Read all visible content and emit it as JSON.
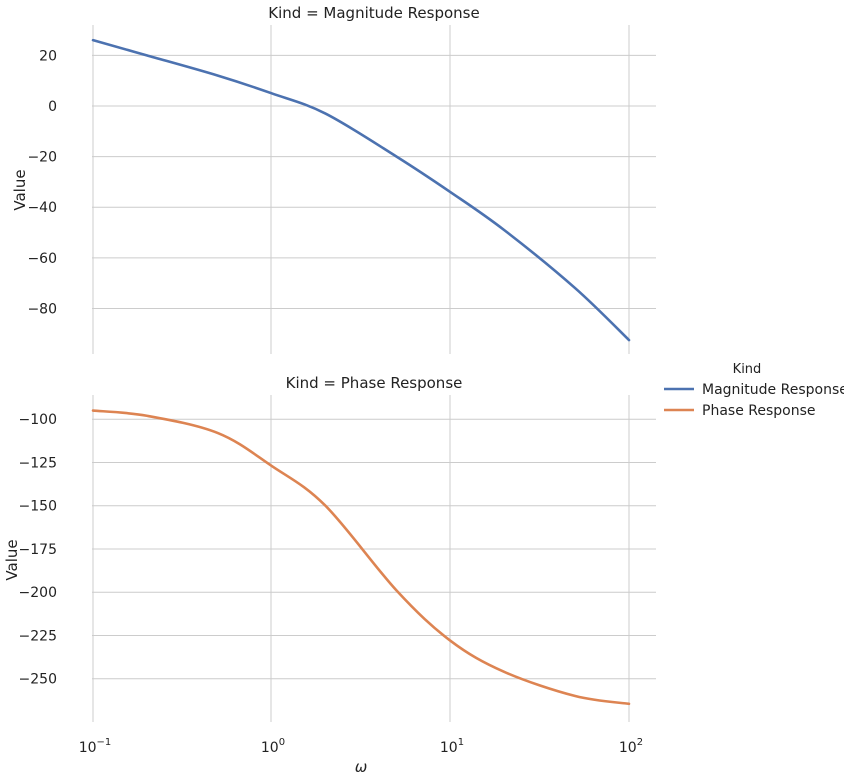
{
  "chart_data": [
    {
      "type": "line",
      "title": "Kind = Magnitude Response",
      "xlabel": "",
      "ylabel": "Value",
      "x_scale": "log",
      "xlim": [
        0.1,
        100
      ],
      "ylim": [
        -98,
        32
      ],
      "yticks": [
        20,
        0,
        -20,
        -40,
        -60,
        -80
      ],
      "ytick_labels": [
        "20",
        "0",
        "−20",
        "−40",
        "−60",
        "−80"
      ],
      "grid": true,
      "series": [
        {
          "name": "Magnitude Response",
          "color": "#4c72b0",
          "x": [
            0.1,
            0.2,
            0.5,
            1,
            2,
            5,
            10,
            20,
            50,
            100
          ],
          "values": [
            26,
            20,
            12,
            5,
            -3,
            -20,
            -34,
            -49,
            -72,
            -92.5
          ]
        }
      ]
    },
    {
      "type": "line",
      "title": "Kind = Phase Response",
      "xlabel": "ω",
      "ylabel": "Value",
      "x_scale": "log",
      "xlim": [
        0.1,
        100
      ],
      "ylim": [
        -275,
        -86
      ],
      "yticks": [
        -100,
        -125,
        -150,
        -175,
        -200,
        -225,
        -250
      ],
      "ytick_labels": [
        "−100",
        "−125",
        "−150",
        "−175",
        "−200",
        "−225",
        "−250"
      ],
      "xticks": [
        0.1,
        1,
        10,
        100
      ],
      "xtick_labels": [
        {
          "base": "10",
          "exp": "−1"
        },
        {
          "base": "10",
          "exp": "0"
        },
        {
          "base": "10",
          "exp": "1"
        },
        {
          "base": "10",
          "exp": "2"
        }
      ],
      "grid": true,
      "series": [
        {
          "name": "Phase Response",
          "color": "#dd8452",
          "x": [
            0.1,
            0.2,
            0.5,
            1,
            2,
            5,
            10,
            20,
            50,
            100
          ],
          "values": [
            -95,
            -98,
            -108,
            -127,
            -150,
            -199,
            -228,
            -246,
            -260,
            -264.5
          ]
        }
      ]
    }
  ],
  "legend": {
    "title": "Kind",
    "placement": "right",
    "items": [
      {
        "label": "Magnitude Response",
        "color": "#4c72b0"
      },
      {
        "label": "Phase Response",
        "color": "#dd8452"
      }
    ]
  }
}
